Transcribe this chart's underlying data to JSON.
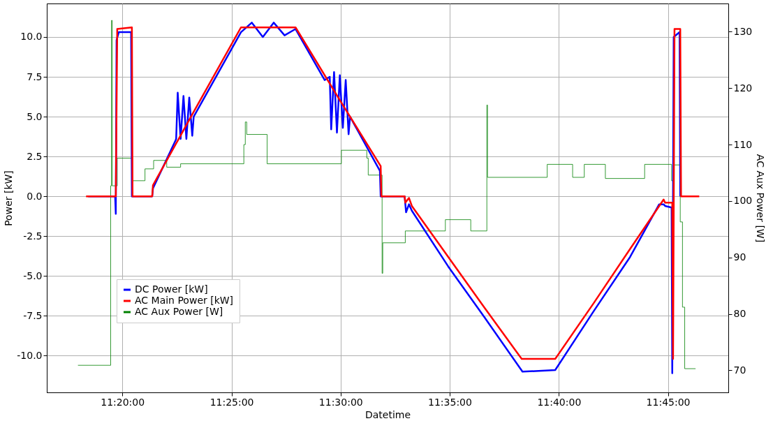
{
  "chart_data": {
    "type": "line",
    "xlabel": "Datetime",
    "ylabel": "Power [kW]",
    "y2label": "AC Aux Power [W]",
    "xlim": [
      11.2756,
      11.7961
    ],
    "xticks": [
      {
        "value": 11.3333,
        "label": "11:20:00"
      },
      {
        "value": 11.4167,
        "label": "11:25:00"
      },
      {
        "value": 11.5,
        "label": "11:30:00"
      },
      {
        "value": 11.5833,
        "label": "11:35:00"
      },
      {
        "value": 11.6667,
        "label": "11:40:00"
      },
      {
        "value": 11.75,
        "label": "11:45:00"
      }
    ],
    "ylim": [
      -12.3,
      12.1
    ],
    "yticks": [
      {
        "value": -10,
        "label": "-10.0"
      },
      {
        "value": -7.5,
        "label": "-7.5"
      },
      {
        "value": -5,
        "label": "-5.0"
      },
      {
        "value": -2.5,
        "label": "-2.5"
      },
      {
        "value": 0,
        "label": "0.0"
      },
      {
        "value": 2.5,
        "label": "2.5"
      },
      {
        "value": 5,
        "label": "5.0"
      },
      {
        "value": 7.5,
        "label": "7.5"
      },
      {
        "value": 10,
        "label": "10.0"
      }
    ],
    "y2lim": [
      66.1,
      135.0
    ],
    "y2ticks": [
      70,
      80,
      90,
      100,
      110,
      120,
      130
    ],
    "grid": true,
    "legend": "bottom left",
    "series": [
      {
        "name": "DC Power [kW]",
        "color": "#0000ff",
        "x": [
          11.3072,
          11.3278,
          11.3283,
          11.3289,
          11.3306,
          11.34,
          11.3406,
          11.3561,
          11.3567,
          11.3739,
          11.3744,
          11.3756,
          11.3778,
          11.38,
          11.3822,
          11.3844,
          11.3867,
          11.3878,
          11.4239,
          11.4322,
          11.4406,
          11.4489,
          11.4572,
          11.4656,
          11.4878,
          11.4917,
          11.4928,
          11.495,
          11.4972,
          11.4994,
          11.5017,
          11.5039,
          11.5061,
          11.5072,
          11.53,
          11.5306,
          11.5489,
          11.55,
          11.5522,
          11.5544,
          11.5822,
          11.61,
          11.6389,
          11.6639,
          11.6933,
          11.7211,
          11.7433,
          11.7467,
          11.7478,
          11.7528,
          11.7533,
          11.7544,
          11.7589,
          11.7594
        ],
        "values": [
          0,
          0,
          -1.1,
          9.8,
          10.3,
          10.3,
          0,
          0,
          0.5,
          3.5,
          3.6,
          6.5,
          3.6,
          6.3,
          3.6,
          6.2,
          3.8,
          5.0,
          10.3,
          10.9,
          10.0,
          10.9,
          10.1,
          10.5,
          7.3,
          7.5,
          4.2,
          7.8,
          4.0,
          7.6,
          4.3,
          7.3,
          3.9,
          5.0,
          1.6,
          0,
          0,
          -1.0,
          -0.5,
          -0.9,
          -4.4,
          -7.6,
          -11.0,
          -10.9,
          -7.2,
          -3.8,
          -0.5,
          -0.5,
          -0.6,
          -0.7,
          -11.1,
          10.0,
          10.3,
          0
        ]
      },
      {
        "name": "AC Main Power [kW]",
        "color": "#ff0000",
        "x": [
          11.3056,
          11.3283,
          11.3294,
          11.3406,
          11.3411,
          11.3561,
          11.3567,
          11.3878,
          11.4239,
          11.4656,
          11.4989,
          11.5306,
          11.5311,
          11.5489,
          11.5494,
          11.5522,
          11.5544,
          11.5822,
          11.61,
          11.6383,
          11.6639,
          11.6933,
          11.7211,
          11.7467,
          11.7478,
          11.7533,
          11.7539,
          11.755,
          11.7594,
          11.76,
          11.7739
        ],
        "values": [
          0,
          0,
          10.5,
          10.6,
          0,
          0,
          0.7,
          5.3,
          10.6,
          10.6,
          6.1,
          1.9,
          0,
          0,
          -0.4,
          -0.1,
          -0.6,
          -3.8,
          -7.0,
          -10.2,
          -10.2,
          -6.7,
          -3.3,
          -0.2,
          -0.4,
          -0.4,
          -10.2,
          10.5,
          10.5,
          0,
          0
        ]
      },
      {
        "name": "AC Aux Power [W]",
        "color": "#008000",
        "type": "step",
        "axis": "y2",
        "x": [
          11.2994,
          11.3244,
          11.325,
          11.3256,
          11.3294,
          11.3411,
          11.3506,
          11.3572,
          11.3672,
          11.3778,
          11.4261,
          11.4272,
          11.4283,
          11.4439,
          11.5006,
          11.52,
          11.5211,
          11.5317,
          11.5322,
          11.5494,
          11.58,
          11.5994,
          11.6117,
          11.6122,
          11.6578,
          11.6772,
          11.6861,
          11.7022,
          11.7322,
          11.7528,
          11.7544,
          11.7594,
          11.7611,
          11.7628,
          11.7711
        ],
        "values": [
          70.9,
          102.7,
          132.0,
          102.7,
          107.6,
          103.6,
          105.7,
          107.2,
          106.0,
          106.6,
          110.0,
          114.0,
          111.8,
          106.6,
          109.0,
          107.6,
          104.6,
          87.2,
          92.6,
          94.7,
          96.7,
          94.7,
          117.0,
          104.2,
          106.5,
          104.2,
          106.5,
          104.0,
          106.5,
          103.6,
          106.4,
          96.3,
          81.2,
          70.3,
          70.3
        ]
      }
    ]
  }
}
